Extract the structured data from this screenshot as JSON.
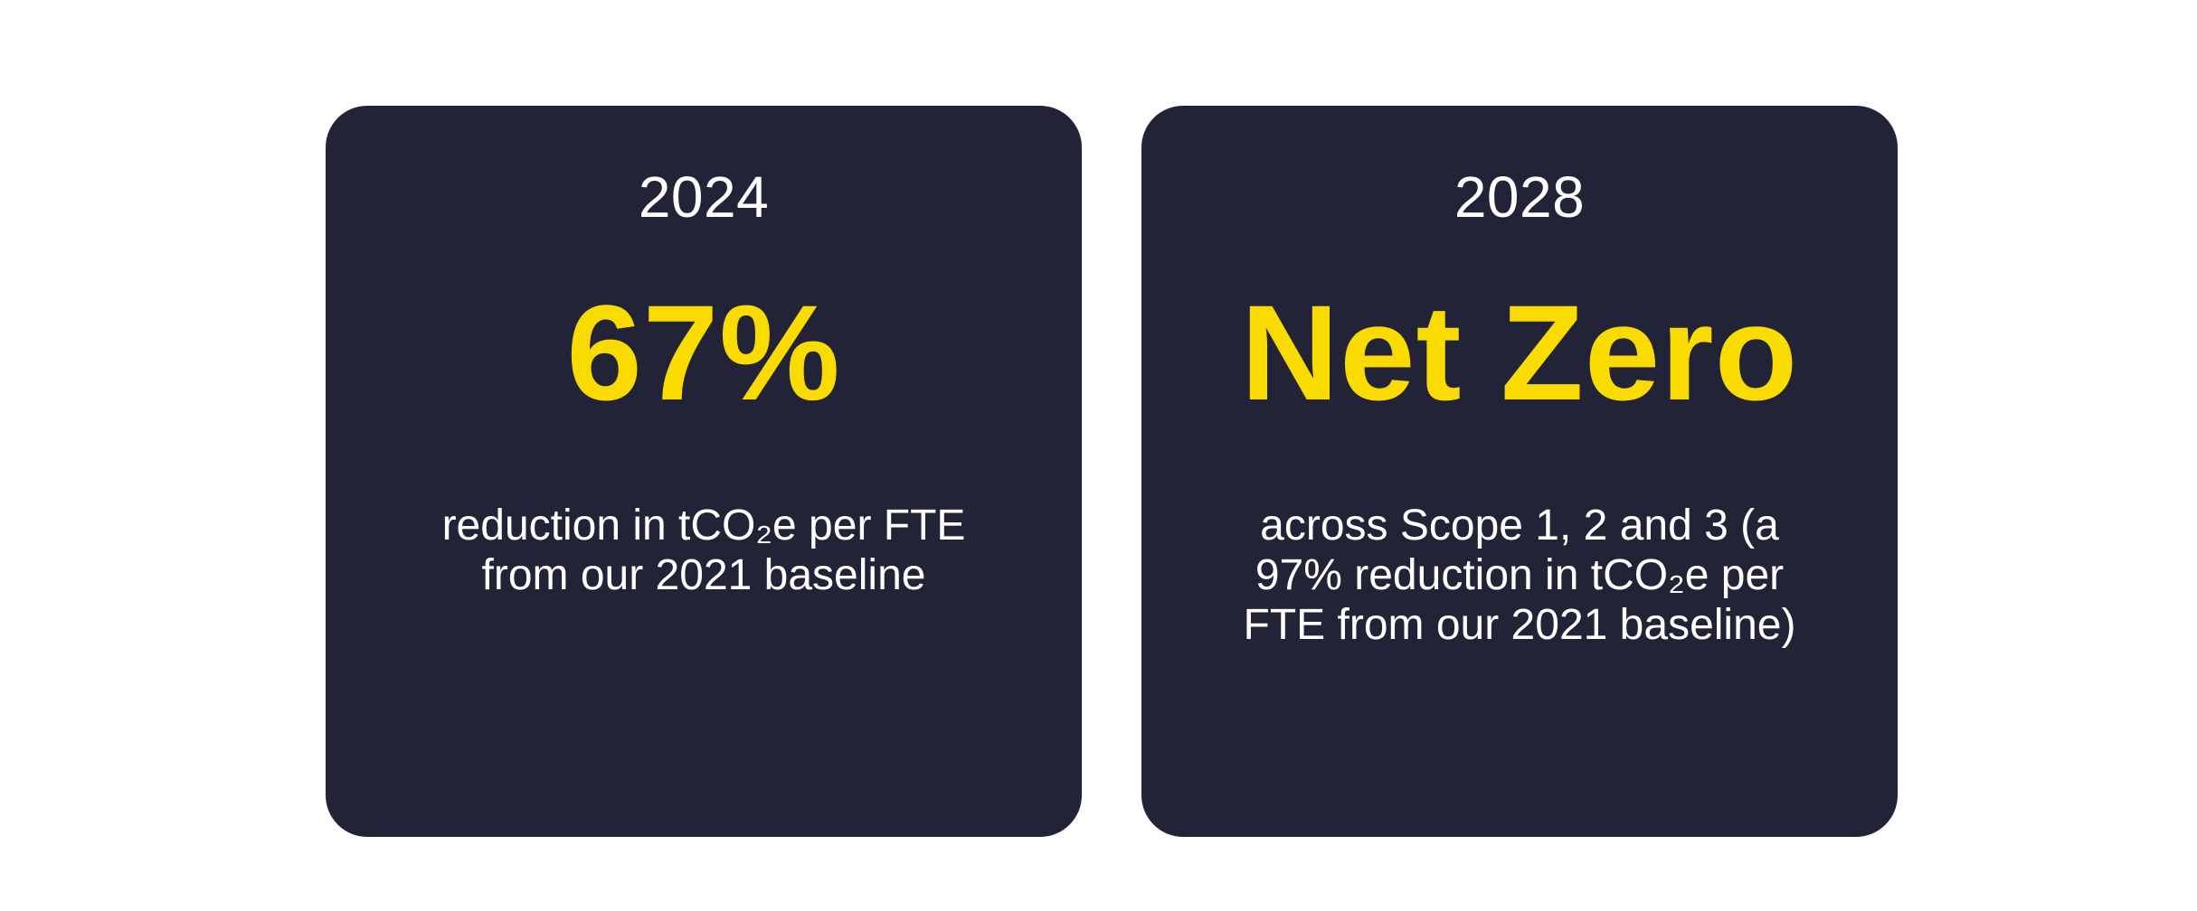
{
  "page": {
    "background_color": "#FFFFFF"
  },
  "colors": {
    "card_background": "#232338",
    "accent_yellow": "#FADB00",
    "text_white": "#FFFFFF"
  },
  "cards": [
    {
      "year": "2024",
      "headline": "67%",
      "body_lines": [
        "reduction in tCO₂e per FTE",
        "from our 2021 baseline"
      ]
    },
    {
      "year": "2028",
      "headline": "Net Zero",
      "body_lines": [
        "across Scope 1, 2 and 3 (a",
        "97% reduction in tCO₂e per",
        "FTE from our 2021 baseline)"
      ]
    }
  ]
}
